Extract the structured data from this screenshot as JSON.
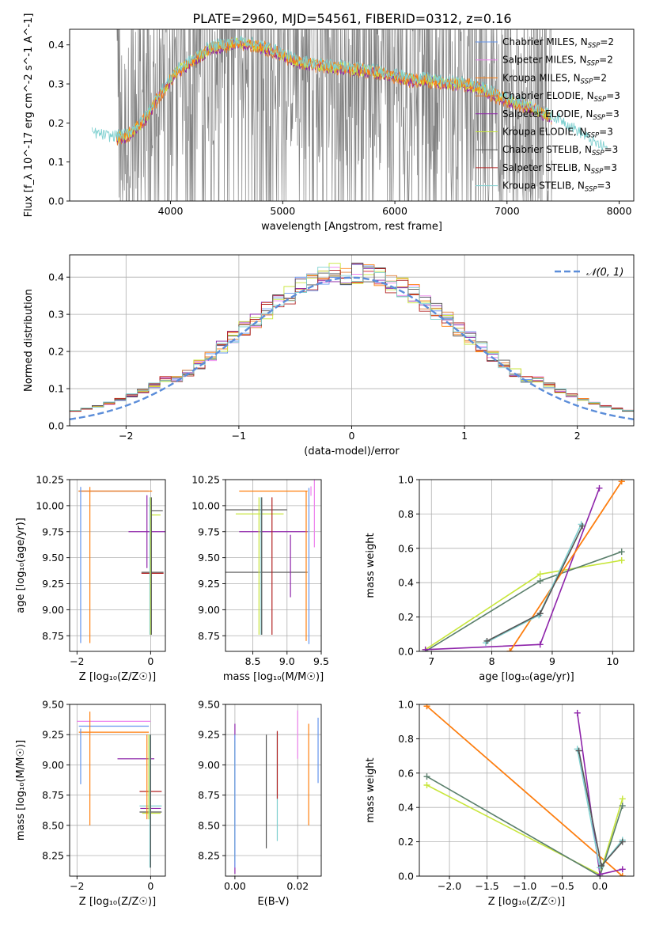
{
  "figure": {
    "title": "PLATE=2960, MJD=54561, FIBERID=0312, z=0.16"
  },
  "colors": {
    "chabrier_miles": "#6495ed",
    "salpeter_miles": "#ee82ee",
    "kroupa_miles": "#ff7f0e",
    "chabrier_elodie": "#e0792f",
    "salpeter_elodie": "#8e24aa",
    "kroupa_elodie": "#c8e63c",
    "chabrier_stelib": "#555555",
    "salpeter_stelib": "#b22222",
    "kroupa_stelib": "#7fd0d0",
    "data": "#808080",
    "normal": "#5b8dd9",
    "green_line": "#5a7f6b",
    "gray_grid": "#b0b0b0"
  },
  "chart_data": [
    {
      "id": "spectrum",
      "type": "line",
      "xlabel": "wavelength [Angstrom, rest frame]",
      "ylabel": "Flux [f_λ 10^-17 erg cm^-2 s^-1 A^-1]",
      "xlim": [
        3100,
        8130
      ],
      "ylim": [
        0,
        0.44
      ],
      "xticks": [
        "4000",
        "5000",
        "6000",
        "7000",
        "8000"
      ],
      "yticks": [
        "0.0",
        "0.1",
        "0.2",
        "0.3",
        "0.4"
      ],
      "grid": false,
      "legend_position": "upper-right",
      "legend": [
        {
          "base": "Chabrier MILES, N",
          "sub": "SSP",
          "tail": "=2",
          "color": "chabrier_miles"
        },
        {
          "base": "Salpeter MILES, N",
          "sub": "SSP",
          "tail": "=2",
          "color": "salpeter_miles"
        },
        {
          "base": "Kroupa MILES, N",
          "sub": "SSP",
          "tail": "=2",
          "color": "kroupa_miles"
        },
        {
          "base": "Chabrier ELODIE, N",
          "sub": "SSP",
          "tail": "=3",
          "color": "chabrier_elodie"
        },
        {
          "base": "Salpeter ELODIE, N",
          "sub": "SSP",
          "tail": "=3",
          "color": "salpeter_elodie"
        },
        {
          "base": "Kroupa ELODIE, N",
          "sub": "SSP",
          "tail": "=3",
          "color": "kroupa_elodie"
        },
        {
          "base": "Chabrier STELIB, N",
          "sub": "SSP",
          "tail": "=3",
          "color": "chabrier_stelib"
        },
        {
          "base": "Salpeter STELIB, N",
          "sub": "SSP",
          "tail": "=3",
          "color": "salpeter_stelib"
        },
        {
          "base": "Kroupa STELIB, N",
          "sub": "SSP",
          "tail": "=3",
          "color": "kroupa_stelib"
        }
      ],
      "model_envelope": {
        "x": [
          3300,
          3450,
          3600,
          3750,
          3900,
          4050,
          4200,
          4350,
          4500,
          4650,
          4800,
          4950,
          5100,
          5250,
          5400,
          5550,
          5700,
          5850,
          6000,
          6150,
          6300,
          6450,
          6600,
          6750,
          6900,
          7050,
          7200,
          7350,
          7500,
          7650,
          7800,
          7900
        ],
        "y": [
          0.17,
          0.16,
          0.165,
          0.2,
          0.27,
          0.33,
          0.36,
          0.39,
          0.4,
          0.405,
          0.395,
          0.38,
          0.36,
          0.35,
          0.345,
          0.34,
          0.335,
          0.33,
          0.32,
          0.31,
          0.31,
          0.3,
          0.3,
          0.29,
          0.27,
          0.255,
          0.24,
          0.22,
          0.2,
          0.17,
          0.14,
          0.13
        ]
      }
    },
    {
      "id": "residuals",
      "type": "line",
      "xlabel": "(data-model)/error",
      "ylabel": "Normed distribution",
      "xlim": [
        -2.5,
        2.5
      ],
      "ylim": [
        0,
        0.46
      ],
      "xticks": [
        "−2",
        "−1",
        "0",
        "1",
        "2"
      ],
      "yticks": [
        "0.0",
        "0.1",
        "0.2",
        "0.3",
        "0.4"
      ],
      "grid": true,
      "legend_position": "upper-right",
      "normal_label": "𝒩(0, 1)",
      "bin_width": 0.1
    },
    {
      "id": "age_vs_Z",
      "type": "scatter",
      "xlabel": "Z [log₁₀(Z/Z☉)]",
      "ylabel": "age  [log₁₀(age/yr)]",
      "xlim": [
        -2.2,
        0.4
      ],
      "ylim": [
        8.6,
        10.25
      ],
      "xticks": [
        "−2",
        "0"
      ],
      "yticks": [
        "8.75",
        "9.00",
        "9.25",
        "9.50",
        "9.75",
        "10.00",
        "10.25"
      ],
      "grid": true,
      "points": [
        {
          "x": -0.96,
          "y": 10.14,
          "xerr": 1.0,
          "yerr": 0.0,
          "color": "kroupa_miles"
        },
        {
          "x": -1.0,
          "y": 10.14,
          "xerr": 0.95,
          "yerr": 0.0,
          "color": "chabrier_elodie"
        },
        {
          "x": -1.9,
          "y": 9.43,
          "xerr": 0.0,
          "yerr": 0.75,
          "color": "chabrier_miles"
        },
        {
          "x": -1.65,
          "y": 9.43,
          "xerr": 0.0,
          "yerr": 0.75,
          "color": "kroupa_miles"
        },
        {
          "x": -0.1,
          "y": 9.75,
          "xerr": 0.5,
          "yerr": 0.35,
          "color": "salpeter_elodie"
        },
        {
          "x": 0.05,
          "y": 9.36,
          "xerr": 0.3,
          "yerr": 0.0,
          "color": "chabrier_stelib"
        },
        {
          "x": 0.05,
          "y": 9.35,
          "xerr": 0.3,
          "yerr": 0.0,
          "color": "salpeter_stelib"
        },
        {
          "x": 0.15,
          "y": 9.95,
          "xerr": 0.18,
          "yerr": 0.0,
          "color": "chabrier_stelib"
        },
        {
          "x": 0.12,
          "y": 9.91,
          "xerr": 0.15,
          "yerr": 0.0,
          "color": "kroupa_elodie"
        },
        {
          "x": -0.02,
          "y": 9.42,
          "xerr": 0.0,
          "yerr": 0.66,
          "color": "kroupa_stelib"
        },
        {
          "x": 0.0,
          "y": 9.42,
          "xerr": 0.0,
          "yerr": 0.66,
          "color": "kroupa_elodie"
        },
        {
          "x": 0.02,
          "y": 9.42,
          "xerr": 0.0,
          "yerr": 0.66,
          "color": "chabrier_stelib"
        }
      ]
    },
    {
      "id": "age_vs_mass",
      "type": "scatter",
      "xlabel": "mass [log₁₀(M/M☉)]",
      "xlim": [
        8.1,
        9.5
      ],
      "ylim": [
        8.6,
        10.25
      ],
      "xticks": [
        "8.5",
        "9.0",
        "9.5"
      ],
      "yticks": [
        "8.75",
        "9.00",
        "9.25",
        "9.50",
        "9.75",
        "10.00",
        "10.25"
      ],
      "grid": true,
      "points": [
        {
          "x": 8.8,
          "y": 10.14,
          "xerr": 0.5,
          "yerr": 0.0,
          "color": "kroupa_miles"
        },
        {
          "x": 9.35,
          "y": 10.14,
          "xerr": 0.0,
          "yerr": 0.0,
          "color": "salpeter_miles"
        },
        {
          "x": 8.55,
          "y": 9.96,
          "xerr": 0.45,
          "yerr": 0.0,
          "color": "chabrier_stelib"
        },
        {
          "x": 8.6,
          "y": 9.92,
          "xerr": 0.35,
          "yerr": 0.0,
          "color": "kroupa_elodie"
        },
        {
          "x": 8.8,
          "y": 9.75,
          "xerr": 0.5,
          "yerr": 0.0,
          "color": "salpeter_elodie"
        },
        {
          "x": 8.7,
          "y": 9.36,
          "xerr": 0.6,
          "yerr": 0.0,
          "color": "chabrier_stelib"
        },
        {
          "x": 8.62,
          "y": 9.42,
          "xerr": 0.0,
          "yerr": 0.66,
          "color": "kroupa_stelib"
        },
        {
          "x": 8.63,
          "y": 9.42,
          "xerr": 0.0,
          "yerr": 0.66,
          "color": "chabrier_stelib"
        },
        {
          "x": 8.59,
          "y": 9.42,
          "xerr": 0.0,
          "yerr": 0.66,
          "color": "kroupa_elodie"
        },
        {
          "x": 8.78,
          "y": 9.42,
          "xerr": 0.0,
          "yerr": 0.66,
          "color": "salpeter_stelib"
        },
        {
          "x": 9.05,
          "y": 9.42,
          "xerr": 0.0,
          "yerr": 0.3,
          "color": "salpeter_elodie"
        },
        {
          "x": 9.28,
          "y": 9.42,
          "xerr": 0.0,
          "yerr": 0.72,
          "color": "kroupa_miles"
        },
        {
          "x": 9.32,
          "y": 9.42,
          "xerr": 0.0,
          "yerr": 0.75,
          "color": "chabrier_miles"
        },
        {
          "x": 9.4,
          "y": 9.95,
          "xerr": 0.0,
          "yerr": 0.35,
          "color": "salpeter_miles"
        }
      ]
    },
    {
      "id": "weight_vs_age",
      "type": "line",
      "xlabel": "age  [log₁₀(age/yr)]",
      "ylabel": "mass weight",
      "xlim": [
        6.8,
        10.35
      ],
      "ylim": [
        0,
        1.0
      ],
      "xticks": [
        "7",
        "8",
        "9",
        "10"
      ],
      "yticks": [
        "0.0",
        "0.2",
        "0.4",
        "0.6",
        "0.8",
        "1.0"
      ],
      "grid": true,
      "series": [
        {
          "color": "kroupa_elodie",
          "x": [
            6.9,
            8.8,
            10.15
          ],
          "y": [
            0.01,
            0.45,
            0.53
          ]
        },
        {
          "color": "green_line",
          "x": [
            6.9,
            8.8,
            10.15
          ],
          "y": [
            0.0,
            0.41,
            0.58
          ]
        },
        {
          "color": "salpeter_elodie",
          "x": [
            6.9,
            8.8,
            9.78
          ],
          "y": [
            0.01,
            0.04,
            0.95
          ]
        },
        {
          "color": "chabrier_elodie",
          "x": [
            8.3,
            10.15
          ],
          "y": [
            0.0,
            0.99
          ]
        },
        {
          "color": "kroupa_miles",
          "x": [
            8.3,
            10.15
          ],
          "y": [
            0.0,
            0.99
          ]
        },
        {
          "color": "kroupa_stelib",
          "x": [
            7.9,
            8.78,
            9.48
          ],
          "y": [
            0.05,
            0.21,
            0.74
          ]
        },
        {
          "color": "chabrier_stelib",
          "x": [
            7.92,
            8.8,
            9.5
          ],
          "y": [
            0.06,
            0.22,
            0.73
          ]
        }
      ]
    },
    {
      "id": "mass_vs_Z",
      "type": "scatter",
      "xlabel": "Z [log₁₀(Z/Z☉)]",
      "ylabel": "mass [log₁₀(M/M☉)]",
      "xlim": [
        -2.2,
        0.4
      ],
      "ylim": [
        8.08,
        9.5
      ],
      "xticks": [
        "−2",
        "0"
      ],
      "yticks": [
        "8.25",
        "8.50",
        "8.75",
        "9.00",
        "9.25",
        "9.50"
      ],
      "grid": true,
      "points": [
        {
          "x": -1.0,
          "y": 9.36,
          "xerr": 1.0,
          "yerr": 0.0,
          "color": "salpeter_miles"
        },
        {
          "x": -1.0,
          "y": 9.32,
          "xerr": 0.95,
          "yerr": 0.0,
          "color": "chabrier_miles"
        },
        {
          "x": -1.0,
          "y": 9.27,
          "xerr": 0.95,
          "yerr": 0.0,
          "color": "kroupa_miles"
        },
        {
          "x": -1.9,
          "y": 9.07,
          "xerr": 0.0,
          "yerr": 0.23,
          "color": "chabrier_miles"
        },
        {
          "x": -1.65,
          "y": 8.97,
          "xerr": 0.0,
          "yerr": 0.47,
          "color": "kroupa_miles"
        },
        {
          "x": -0.4,
          "y": 9.05,
          "xerr": 0.5,
          "yerr": 0.0,
          "color": "salpeter_elodie"
        },
        {
          "x": 0.0,
          "y": 8.78,
          "xerr": 0.3,
          "yerr": 0.0,
          "color": "salpeter_stelib"
        },
        {
          "x": 0.0,
          "y": 8.66,
          "xerr": 0.3,
          "yerr": 0.0,
          "color": "kroupa_stelib"
        },
        {
          "x": 0.0,
          "y": 8.64,
          "xerr": 0.28,
          "yerr": 0.0,
          "color": "salpeter_elodie"
        },
        {
          "x": 0.0,
          "y": 8.61,
          "xerr": 0.3,
          "yerr": 0.0,
          "color": "chabrier_stelib"
        },
        {
          "x": 0.02,
          "y": 8.6,
          "xerr": 0.25,
          "yerr": 0.0,
          "color": "kroupa_elodie"
        },
        {
          "x": -0.1,
          "y": 8.9,
          "xerr": 0.0,
          "yerr": 0.35,
          "color": "kroupa_miles"
        },
        {
          "x": -0.05,
          "y": 8.9,
          "xerr": 0.0,
          "yerr": 0.35,
          "color": "kroupa_elodie"
        },
        {
          "x": -0.02,
          "y": 8.7,
          "xerr": 0.0,
          "yerr": 0.55,
          "color": "kroupa_stelib"
        },
        {
          "x": 0.0,
          "y": 8.7,
          "xerr": 0.0,
          "yerr": 0.55,
          "color": "chabrier_stelib"
        }
      ]
    },
    {
      "id": "mass_vs_EBV",
      "type": "scatter",
      "xlabel": "E(B-V)",
      "xlim": [
        -0.003,
        0.0275
      ],
      "ylim": [
        8.08,
        9.5
      ],
      "xticks": [
        "0.00",
        "0.02"
      ],
      "yticks": [
        "8.25",
        "8.50",
        "8.75",
        "9.00",
        "9.25",
        "9.50"
      ],
      "grid": true,
      "points": [
        {
          "x": 0.0,
          "y": 8.72,
          "xerr": 0.0,
          "yerr": 0.62,
          "color": "salpeter_elodie"
        },
        {
          "x": 0.0,
          "y": 8.7,
          "xerr": 0.0,
          "yerr": 0.5,
          "color": "kroupa_elodie"
        },
        {
          "x": 0.0,
          "y": 8.7,
          "xerr": 0.0,
          "yerr": 0.5,
          "color": "kroupa_stelib"
        },
        {
          "x": 0.0,
          "y": 8.7,
          "xerr": 0.0,
          "yerr": 0.55,
          "color": "chabrier_miles"
        },
        {
          "x": 0.01,
          "y": 8.78,
          "xerr": 0.0,
          "yerr": 0.47,
          "color": "chabrier_stelib"
        },
        {
          "x": 0.0135,
          "y": 8.82,
          "xerr": 0.0,
          "yerr": 0.45,
          "color": "kroupa_stelib"
        },
        {
          "x": 0.0135,
          "y": 9.0,
          "xerr": 0.0,
          "yerr": 0.28,
          "color": "salpeter_stelib"
        },
        {
          "x": 0.02,
          "y": 9.25,
          "xerr": 0.0,
          "yerr": 0.2,
          "color": "salpeter_miles"
        },
        {
          "x": 0.0235,
          "y": 8.92,
          "xerr": 0.0,
          "yerr": 0.42,
          "color": "kroupa_miles"
        },
        {
          "x": 0.0265,
          "y": 9.12,
          "xerr": 0.0,
          "yerr": 0.27,
          "color": "chabrier_miles"
        }
      ]
    },
    {
      "id": "weight_vs_Z",
      "type": "line",
      "xlabel": "Z [log₁₀(Z/Z☉)]",
      "ylabel": "mass weight",
      "xlim": [
        -2.4,
        0.45
      ],
      "ylim": [
        0,
        1.0
      ],
      "xticks": [
        "−2.0",
        "−1.5",
        "−1.0",
        "−0.5",
        "0.0"
      ],
      "yticks": [
        "0.0",
        "0.2",
        "0.4",
        "0.6",
        "0.8",
        "1.0"
      ],
      "grid": true,
      "series": [
        {
          "color": "chabrier_elodie",
          "x": [
            -2.3,
            0.3
          ],
          "y": [
            0.99,
            0.0
          ]
        },
        {
          "color": "kroupa_miles",
          "x": [
            -2.3,
            0.3
          ],
          "y": [
            0.99,
            0.0
          ]
        },
        {
          "color": "kroupa_elodie",
          "x": [
            -2.3,
            0.0,
            0.3
          ],
          "y": [
            0.53,
            0.01,
            0.45
          ]
        },
        {
          "color": "green_line",
          "x": [
            -2.3,
            0.0,
            0.3
          ],
          "y": [
            0.58,
            0.0,
            0.41
          ]
        },
        {
          "color": "salpeter_elodie",
          "x": [
            -0.3,
            0.0,
            0.3
          ],
          "y": [
            0.95,
            0.01,
            0.04
          ]
        },
        {
          "color": "kroupa_stelib",
          "x": [
            -0.3,
            0.0,
            0.3
          ],
          "y": [
            0.74,
            0.05,
            0.21
          ]
        },
        {
          "color": "chabrier_stelib",
          "x": [
            -0.28,
            0.02,
            0.3
          ],
          "y": [
            0.73,
            0.06,
            0.2
          ]
        }
      ]
    }
  ]
}
